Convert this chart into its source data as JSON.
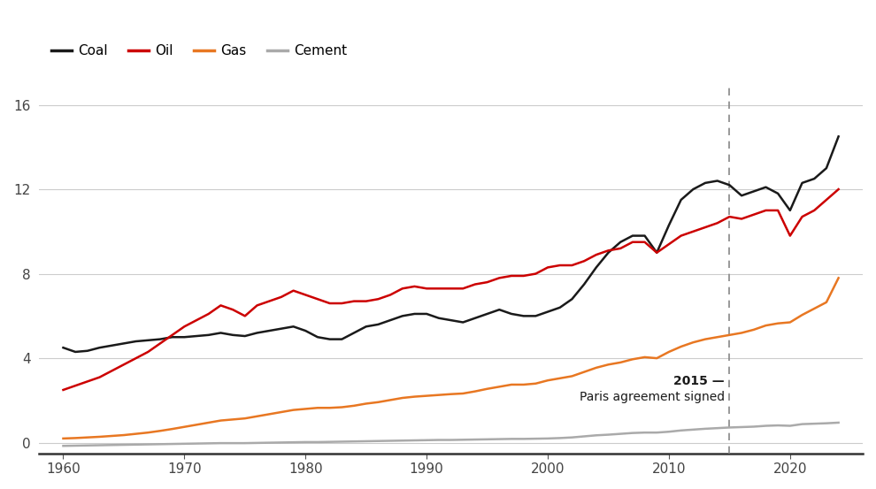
{
  "title": "",
  "background_color": "#ffffff",
  "xlim": [
    1958,
    2026
  ],
  "ylim": [
    -0.5,
    17
  ],
  "yticks": [
    0,
    4,
    8,
    12,
    16
  ],
  "xticks": [
    1960,
    1970,
    1980,
    1990,
    2000,
    2010,
    2020
  ],
  "paris_year": 2015,
  "annotation_text_bold": "2015 —",
  "annotation_text": "Paris agreement signed",
  "legend_entries": [
    "Coal",
    "Oil",
    "Gas",
    "Cement"
  ],
  "colors": {
    "coal": "#1a1a1a",
    "oil": "#cc0000",
    "gas": "#e87722",
    "cement": "#aaaaaa"
  },
  "years": [
    1960,
    1961,
    1962,
    1963,
    1964,
    1965,
    1966,
    1967,
    1968,
    1969,
    1970,
    1971,
    1972,
    1973,
    1974,
    1975,
    1976,
    1977,
    1978,
    1979,
    1980,
    1981,
    1982,
    1983,
    1984,
    1985,
    1986,
    1987,
    1988,
    1989,
    1990,
    1991,
    1992,
    1993,
    1994,
    1995,
    1996,
    1997,
    1998,
    1999,
    2000,
    2001,
    2002,
    2003,
    2004,
    2005,
    2006,
    2007,
    2008,
    2009,
    2010,
    2011,
    2012,
    2013,
    2014,
    2015,
    2016,
    2017,
    2018,
    2019,
    2020,
    2021,
    2022,
    2023,
    2024
  ],
  "coal": [
    4.5,
    4.3,
    4.35,
    4.5,
    4.6,
    4.7,
    4.8,
    4.85,
    4.9,
    5.0,
    5.0,
    5.05,
    5.1,
    5.2,
    5.1,
    5.05,
    5.2,
    5.3,
    5.4,
    5.5,
    5.3,
    5.0,
    4.9,
    4.9,
    5.2,
    5.5,
    5.6,
    5.8,
    6.0,
    6.1,
    6.1,
    5.9,
    5.8,
    5.7,
    5.9,
    6.1,
    6.3,
    6.1,
    6.0,
    6.0,
    6.2,
    6.4,
    6.8,
    7.5,
    8.3,
    9.0,
    9.5,
    9.8,
    9.8,
    9.0,
    10.3,
    11.5,
    12.0,
    12.3,
    12.4,
    12.2,
    11.7,
    11.9,
    12.1,
    11.8,
    11.0,
    12.3,
    12.5,
    13.0,
    14.5
  ],
  "oil": [
    2.5,
    2.7,
    2.9,
    3.1,
    3.4,
    3.7,
    4.0,
    4.3,
    4.7,
    5.1,
    5.5,
    5.8,
    6.1,
    6.5,
    6.3,
    6.0,
    6.5,
    6.7,
    6.9,
    7.2,
    7.0,
    6.8,
    6.6,
    6.6,
    6.7,
    6.7,
    6.8,
    7.0,
    7.3,
    7.4,
    7.3,
    7.3,
    7.3,
    7.3,
    7.5,
    7.6,
    7.8,
    7.9,
    7.9,
    8.0,
    8.3,
    8.4,
    8.4,
    8.6,
    8.9,
    9.1,
    9.2,
    9.5,
    9.5,
    9.0,
    9.4,
    9.8,
    10.0,
    10.2,
    10.4,
    10.7,
    10.6,
    10.8,
    11.0,
    11.0,
    9.8,
    10.7,
    11.0,
    11.5,
    12.0
  ],
  "gas": [
    0.2,
    0.22,
    0.25,
    0.28,
    0.32,
    0.36,
    0.42,
    0.48,
    0.56,
    0.65,
    0.75,
    0.85,
    0.95,
    1.05,
    1.1,
    1.15,
    1.25,
    1.35,
    1.45,
    1.55,
    1.6,
    1.65,
    1.65,
    1.68,
    1.75,
    1.85,
    1.92,
    2.02,
    2.12,
    2.18,
    2.22,
    2.26,
    2.3,
    2.33,
    2.43,
    2.55,
    2.65,
    2.75,
    2.75,
    2.8,
    2.95,
    3.05,
    3.15,
    3.35,
    3.55,
    3.7,
    3.8,
    3.95,
    4.05,
    4.0,
    4.3,
    4.55,
    4.75,
    4.9,
    5.0,
    5.1,
    5.2,
    5.35,
    5.55,
    5.65,
    5.7,
    6.05,
    6.35,
    6.65,
    7.8
  ],
  "cement": [
    -0.15,
    -0.14,
    -0.13,
    -0.12,
    -0.11,
    -0.1,
    -0.09,
    -0.08,
    -0.07,
    -0.06,
    -0.05,
    -0.04,
    -0.03,
    -0.02,
    -0.02,
    -0.02,
    -0.01,
    0.0,
    0.01,
    0.02,
    0.03,
    0.03,
    0.04,
    0.05,
    0.06,
    0.07,
    0.08,
    0.09,
    0.1,
    0.11,
    0.12,
    0.13,
    0.13,
    0.14,
    0.15,
    0.16,
    0.17,
    0.18,
    0.18,
    0.19,
    0.2,
    0.22,
    0.25,
    0.3,
    0.35,
    0.38,
    0.42,
    0.46,
    0.48,
    0.48,
    0.52,
    0.58,
    0.62,
    0.66,
    0.69,
    0.72,
    0.74,
    0.76,
    0.8,
    0.82,
    0.8,
    0.88,
    0.9,
    0.92,
    0.95
  ]
}
